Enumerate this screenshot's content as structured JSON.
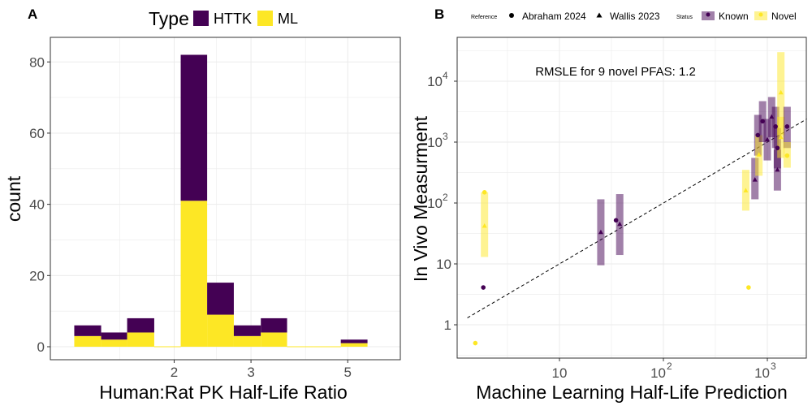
{
  "colors": {
    "httk": "#440154",
    "ml": "#FDE725",
    "known": "#440154",
    "novel": "#FDE725",
    "grid": "#ebebeb",
    "panel_border": "#333333",
    "tick_text": "#4d4d4d"
  },
  "chart_data": [
    {
      "panel": "A",
      "type": "bar",
      "stacked": true,
      "xlabel": "Human:Rat PK Half-Life Ratio",
      "ylabel": "count",
      "x_scale": "log",
      "x_ticks": [
        2,
        3,
        5
      ],
      "x_tick_labels": [
        "2",
        "3",
        "5"
      ],
      "ylim": [
        0,
        82
      ],
      "y_ticks": [
        0,
        20,
        40,
        60,
        80
      ],
      "y_tick_labels": [
        "0",
        "20",
        "40",
        "60",
        "80"
      ],
      "grid": true,
      "legend": {
        "title": "Type",
        "position": "top",
        "entries": [
          "HTTK",
          "ML"
        ]
      },
      "bins": [
        {
          "x0": 1.18,
          "x1": 1.36,
          "ML": 3,
          "HTTK": 3
        },
        {
          "x0": 1.36,
          "x1": 1.56,
          "ML": 2,
          "HTTK": 2
        },
        {
          "x0": 1.56,
          "x1": 1.8,
          "ML": 4,
          "HTTK": 4
        },
        {
          "x0": 1.8,
          "x1": 2.07,
          "ML": 0,
          "HTTK": 0
        },
        {
          "x0": 2.07,
          "x1": 2.38,
          "ML": 41,
          "HTTK": 41
        },
        {
          "x0": 2.38,
          "x1": 2.74,
          "ML": 9,
          "HTTK": 9
        },
        {
          "x0": 2.74,
          "x1": 3.16,
          "ML": 3,
          "HTTK": 3
        },
        {
          "x0": 3.16,
          "x1": 3.63,
          "ML": 4,
          "HTTK": 4
        },
        {
          "x0": 3.63,
          "x1": 4.18,
          "ML": 0,
          "HTTK": 0
        },
        {
          "x0": 4.18,
          "x1": 4.82,
          "ML": 0,
          "HTTK": 0
        },
        {
          "x0": 4.82,
          "x1": 5.55,
          "ML": 1,
          "HTTK": 1
        }
      ]
    },
    {
      "panel": "B",
      "type": "scatter",
      "xlabel": "Machine Learning Half-Life Prediction",
      "ylabel": "In Vivo Measurment",
      "x_scale": "log",
      "y_scale": "log",
      "xlim": [
        1.3,
        2400
      ],
      "ylim": [
        0.28,
        48000
      ],
      "x_ticks": [
        10,
        100,
        1000
      ],
      "x_tick_labels": [
        {
          "base": "10",
          "exp": ""
        },
        {
          "base": "10",
          "exp": "2"
        },
        {
          "base": "10",
          "exp": "3"
        }
      ],
      "y_ticks": [
        1,
        10,
        100,
        1000,
        10000
      ],
      "y_tick_labels": [
        {
          "base": "1",
          "exp": ""
        },
        {
          "base": "10",
          "exp": ""
        },
        {
          "base": "10",
          "exp": "2"
        },
        {
          "base": "10",
          "exp": "3"
        },
        {
          "base": "10",
          "exp": "4"
        }
      ],
      "grid": true,
      "reference_line": {
        "type": "identity",
        "style": "dashed"
      },
      "annotation": "RMSLE for 9 novel PFAS: 1.2",
      "legend": {
        "position": "top",
        "reference_title": "Reference",
        "reference_entries": [
          {
            "label": "Abraham 2024",
            "shape": "circle"
          },
          {
            "label": "Wallis 2023",
            "shape": "triangle"
          }
        ],
        "status_title": "Status",
        "status_entries": [
          "Known",
          "Novel"
        ]
      },
      "points": [
        {
          "x": 1.85,
          "y": 4.1,
          "ref": "Abraham 2024",
          "status": "Known",
          "ylo": 4.1,
          "yhi": 4.1
        },
        {
          "x": 1.9,
          "y": 42,
          "ref": "Wallis 2023",
          "status": "Novel",
          "ylo": 13,
          "yhi": 150
        },
        {
          "x": 1.9,
          "y": 150,
          "ref": "Abraham 2024",
          "status": "Novel",
          "ylo": 150,
          "yhi": 150
        },
        {
          "x": 1.55,
          "y": 0.5,
          "ref": "Abraham 2024",
          "status": "Novel",
          "ylo": 0.5,
          "yhi": 0.5
        },
        {
          "x": 25,
          "y": 33,
          "ref": "Wallis 2023",
          "status": "Known",
          "ylo": 9.5,
          "yhi": 115
        },
        {
          "x": 35,
          "y": 52,
          "ref": "Abraham 2024",
          "status": "Known",
          "ylo": 52,
          "yhi": 52
        },
        {
          "x": 38,
          "y": 45,
          "ref": "Wallis 2023",
          "status": "Known",
          "ylo": 14,
          "yhi": 140
        },
        {
          "x": 620,
          "y": 160,
          "ref": "Wallis 2023",
          "status": "Novel",
          "ylo": 75,
          "yhi": 350
        },
        {
          "x": 660,
          "y": 4.1,
          "ref": "Abraham 2024",
          "status": "Novel",
          "ylo": 4.1,
          "yhi": 4.1
        },
        {
          "x": 760,
          "y": 240,
          "ref": "Wallis 2023",
          "status": "Known",
          "ylo": 115,
          "yhi": 550
        },
        {
          "x": 810,
          "y": 1300,
          "ref": "Abraham 2024",
          "status": "Known",
          "ylo": 600,
          "yhi": 2800
        },
        {
          "x": 830,
          "y": 620,
          "ref": "Wallis 2023",
          "status": "Novel",
          "ylo": 280,
          "yhi": 1300
        },
        {
          "x": 900,
          "y": 2200,
          "ref": "Abraham 2024",
          "status": "Known",
          "ylo": 1000,
          "yhi": 4700
        },
        {
          "x": 1000,
          "y": 1100,
          "ref": "Wallis 2023",
          "status": "Known",
          "ylo": 500,
          "yhi": 2400
        },
        {
          "x": 1100,
          "y": 2600,
          "ref": "Wallis 2023",
          "status": "Known",
          "ylo": 1200,
          "yhi": 5500
        },
        {
          "x": 1200,
          "y": 1800,
          "ref": "Abraham 2024",
          "status": "Known",
          "ylo": 800,
          "yhi": 3800
        },
        {
          "x": 1250,
          "y": 350,
          "ref": "Wallis 2023",
          "status": "Known",
          "ylo": 160,
          "yhi": 750
        },
        {
          "x": 1250,
          "y": 800,
          "ref": "Abraham 2024",
          "status": "Known",
          "ylo": 370,
          "yhi": 1700
        },
        {
          "x": 1350,
          "y": 6500,
          "ref": "Wallis 2023",
          "status": "Novel",
          "ylo": 1300,
          "yhi": 30000
        },
        {
          "x": 1350,
          "y": 1200,
          "ref": "Wallis 2023",
          "status": "Novel",
          "ylo": 550,
          "yhi": 2600
        },
        {
          "x": 1550,
          "y": 1800,
          "ref": "Abraham 2024",
          "status": "Known",
          "ylo": 800,
          "yhi": 3800
        },
        {
          "x": 1550,
          "y": 600,
          "ref": "Abraham 2024",
          "status": "Novel",
          "ylo": 380,
          "yhi": 1000
        }
      ]
    }
  ],
  "panels": {
    "a": {
      "letter": "A",
      "legend_title": "Type",
      "legend_httk": "HTTK",
      "legend_ml": "ML",
      "xlabel": "Human:Rat PK Half-Life Ratio",
      "ylabel": "count"
    },
    "b": {
      "letter": "B",
      "legend_reference_title": "Reference",
      "legend_ref1": "Abraham 2024",
      "legend_ref2": "Wallis 2023",
      "legend_status_title": "Status",
      "legend_known": "Known",
      "legend_novel": "Novel",
      "annotation": "RMSLE for 9 novel PFAS: 1.2",
      "xlabel": "Machine Learning Half-Life Prediction",
      "ylabel": "In Vivo Measurment"
    }
  }
}
